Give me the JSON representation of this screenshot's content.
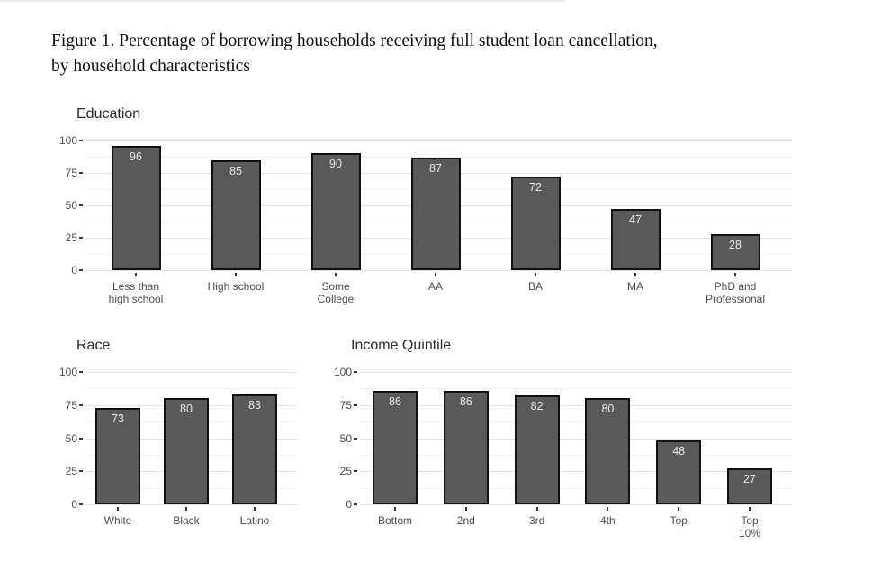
{
  "figure": {
    "title_line1": "Figure 1. Percentage of borrowing households receiving full student loan cancellation,",
    "title_line2": "by household characteristics"
  },
  "style": {
    "bar_fill": "#595959",
    "bar_border": "#111111",
    "value_label_color": "#e8e8e8",
    "axis_text_color": "#4d4d4d",
    "grid_major_color": "#e4e4e4",
    "grid_minor_color": "#f2f2f2",
    "background": "#ffffff"
  },
  "chart_data": [
    {
      "type": "bar",
      "title": "Education",
      "categories": [
        "Less than\nhigh school",
        "High school",
        "Some\nCollege",
        "AA",
        "BA",
        "MA",
        "PhD and\nProfessional"
      ],
      "values": [
        96,
        85,
        90,
        87,
        72,
        47,
        28
      ],
      "xlabel": "",
      "ylabel": "",
      "ylim": [
        0,
        100
      ],
      "yticks": [
        0,
        25,
        50,
        75,
        100
      ],
      "grid": true,
      "legend": "none"
    },
    {
      "type": "bar",
      "title": "Race",
      "categories": [
        "White",
        "Black",
        "Latino"
      ],
      "values": [
        73,
        80,
        83
      ],
      "xlabel": "",
      "ylabel": "",
      "ylim": [
        0,
        100
      ],
      "yticks": [
        0,
        25,
        50,
        75,
        100
      ],
      "grid": true,
      "legend": "none"
    },
    {
      "type": "bar",
      "title": "Income Quintile",
      "categories": [
        "Bottom",
        "2nd",
        "3rd",
        "4th",
        "Top",
        "Top\n10%"
      ],
      "values": [
        86,
        86,
        82,
        80,
        48,
        27
      ],
      "xlabel": "",
      "ylabel": "",
      "ylim": [
        0,
        100
      ],
      "yticks": [
        0,
        25,
        50,
        75,
        100
      ],
      "grid": true,
      "legend": "none"
    }
  ]
}
